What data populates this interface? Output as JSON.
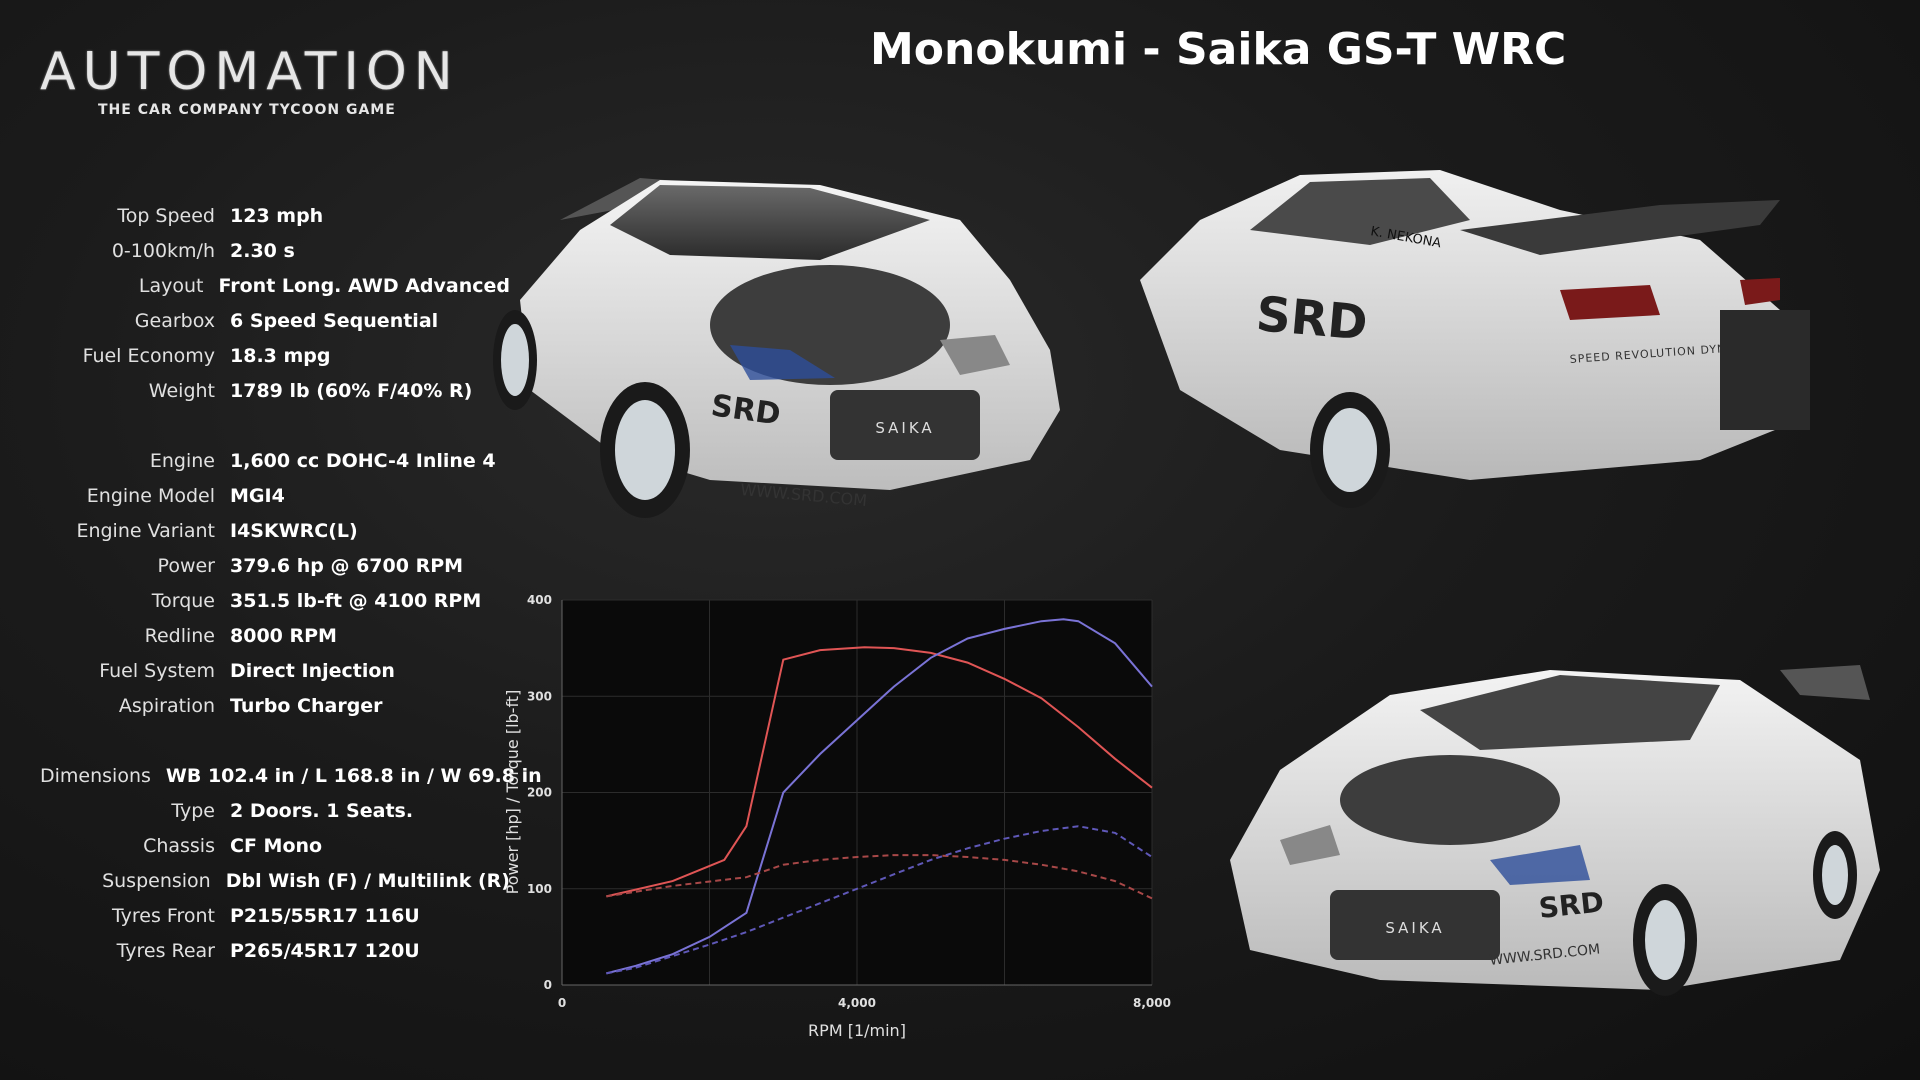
{
  "logo": {
    "word": "AUTOMATION",
    "tagline": "THE CAR COMPANY TYCOON GAME"
  },
  "title": "Monokumi - Saika GS-T WRC",
  "specs": {
    "group1": [
      {
        "label": "Top Speed",
        "value": "123 mph"
      },
      {
        "label": "0-100km/h",
        "value": "2.30 s"
      },
      {
        "label": "Layout",
        "value": "Front Long. AWD Advanced"
      },
      {
        "label": "Gearbox",
        "value": "6 Speed Sequential"
      },
      {
        "label": "Fuel Economy",
        "value": "18.3 mpg"
      },
      {
        "label": "Weight",
        "value": "1789 lb (60% F/40% R)"
      }
    ],
    "group2": [
      {
        "label": "Engine",
        "value": "1,600 cc DOHC-4 Inline 4"
      },
      {
        "label": "Engine Model",
        "value": "MGI4"
      },
      {
        "label": "Engine Variant",
        "value": "I4SKWRC(L)"
      },
      {
        "label": "Power",
        "value": " 379.6 hp @ 6700 RPM"
      },
      {
        "label": "Torque",
        "value": " 351.5 lb-ft @ 4100 RPM"
      },
      {
        "label": "Redline",
        "value": "8000 RPM"
      },
      {
        "label": "Fuel System",
        "value": "Direct Injection"
      },
      {
        "label": "Aspiration",
        "value": "Turbo Charger"
      }
    ],
    "group3": [
      {
        "label": "Dimensions",
        "value": "WB 102.4 in / L 168.8 in / W 69.8 in"
      },
      {
        "label": "Type",
        "value": "2 Doors. 1 Seats."
      },
      {
        "label": "Chassis",
        "value": "CF Mono"
      },
      {
        "label": "Suspension",
        "value": "Dbl Wish (F) / Multilink (R)"
      },
      {
        "label": "Tyres Front",
        "value": "P215/55R17 116U"
      },
      {
        "label": "Tyres Rear",
        "value": "P265/45R17  120U"
      }
    ]
  },
  "car_images": {
    "front": {
      "brand": "SAIKA",
      "site": "WWW.SRD.COM",
      "logo": "SRD"
    },
    "rear": {
      "driver": "K. NEKONA",
      "tagline": "SPEED REVOLUTION DYNAMICS",
      "logo": "SRD"
    },
    "angle": {
      "brand": "SAIKA",
      "site": "WWW.SRD.COM",
      "logo": "SRD"
    }
  },
  "chart_data": {
    "type": "line",
    "xlabel": "RPM [1/min]",
    "ylabel": "Power [hp] / Torque [lb-ft]",
    "xlim": [
      0,
      8000
    ],
    "ylim": [
      0,
      400
    ],
    "xticks": [
      "0",
      "4,000",
      "8,000"
    ],
    "yticks": [
      "0",
      "100",
      "200",
      "300",
      "400"
    ],
    "grid": true,
    "series": [
      {
        "color": "#e05555",
        "dashed": false,
        "x": [
          600,
          1500,
          2200,
          2500,
          3000,
          3500,
          4100,
          4500,
          5000,
          5500,
          6000,
          6500,
          7000,
          7500,
          8000
        ],
        "y": [
          92,
          108,
          130,
          165,
          338,
          348,
          351,
          350,
          345,
          335,
          318,
          298,
          268,
          235,
          205
        ]
      },
      {
        "color": "#7a73d6",
        "dashed": false,
        "x": [
          600,
          1000,
          1500,
          2000,
          2500,
          3000,
          3500,
          4000,
          4500,
          5000,
          5500,
          6000,
          6500,
          6800,
          7000,
          7500,
          8000
        ],
        "y": [
          12,
          20,
          32,
          50,
          75,
          200,
          240,
          275,
          310,
          340,
          360,
          370,
          378,
          380,
          378,
          355,
          310
        ]
      },
      {
        "color": "#a84848",
        "dashed": true,
        "x": [
          600,
          1500,
          2500,
          3000,
          3500,
          4000,
          4500,
          5000,
          5500,
          6000,
          6500,
          7000,
          7500,
          8000
        ],
        "y": [
          92,
          103,
          112,
          125,
          130,
          133,
          135,
          135,
          133,
          130,
          125,
          118,
          108,
          90
        ]
      },
      {
        "color": "#5f58b8",
        "dashed": true,
        "x": [
          600,
          1000,
          1500,
          2000,
          2500,
          3000,
          3500,
          4000,
          4500,
          5000,
          5500,
          6000,
          6500,
          7000,
          7500,
          8000
        ],
        "y": [
          12,
          18,
          30,
          42,
          55,
          70,
          85,
          100,
          115,
          130,
          142,
          152,
          160,
          165,
          158,
          133
        ]
      }
    ]
  }
}
